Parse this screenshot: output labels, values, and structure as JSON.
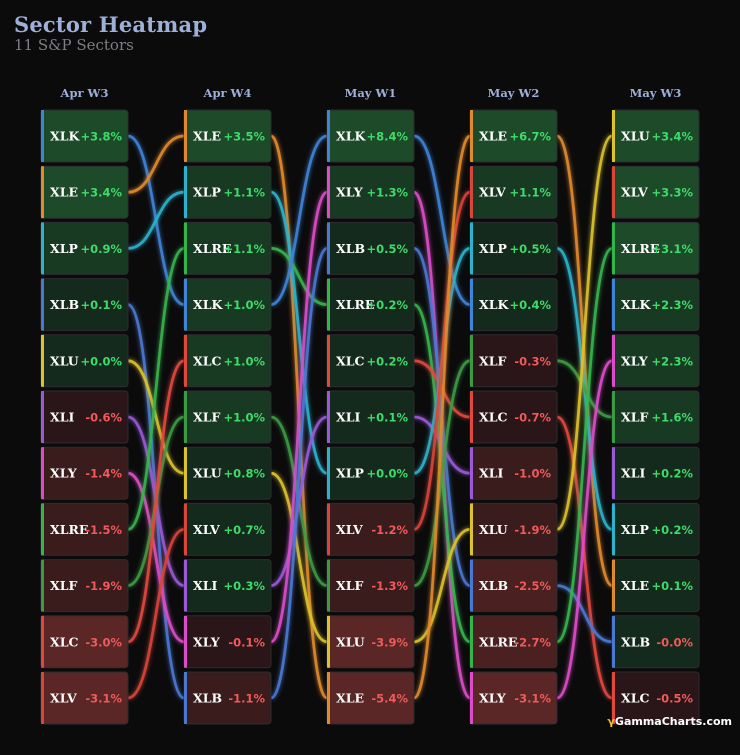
{
  "header": {
    "title": "Sector Heatmap",
    "subtitle": "11 S&P Sectors"
  },
  "brand": {
    "mark": "γ",
    "name": "GammaCharts.com"
  },
  "colors": {
    "background": "#0b0b0c",
    "positive_text": "#3ddc6a",
    "negative_text": "#f05a5a",
    "sector": {
      "XLK": "#3f84d6",
      "XLE": "#e08a2e",
      "XLP": "#2db2cc",
      "XLB": "#4a78d0",
      "XLU": "#dcc22c",
      "XLI": "#9a5ad8",
      "XLY": "#dc4cc8",
      "XLRE": "#36b44c",
      "XLF": "#3c9a44",
      "XLC": "#e0483e",
      "XLV": "#d8453a"
    }
  },
  "chart_data": {
    "type": "bump",
    "columns": [
      {
        "label": "Apr W3",
        "rows": [
          {
            "ticker": "XLK",
            "change": "+3.8%",
            "value": 3.8
          },
          {
            "ticker": "XLE",
            "change": "+3.4%",
            "value": 3.4
          },
          {
            "ticker": "XLP",
            "change": "+0.9%",
            "value": 0.9
          },
          {
            "ticker": "XLB",
            "change": "+0.1%",
            "value": 0.1
          },
          {
            "ticker": "XLU",
            "change": "+0.0%",
            "value": 0.0
          },
          {
            "ticker": "XLI",
            "change": "-0.6%",
            "value": -0.6
          },
          {
            "ticker": "XLY",
            "change": "-1.4%",
            "value": -1.4
          },
          {
            "ticker": "XLRE",
            "change": "-1.5%",
            "value": -1.5
          },
          {
            "ticker": "XLF",
            "change": "-1.9%",
            "value": -1.9
          },
          {
            "ticker": "XLC",
            "change": "-3.0%",
            "value": -3.0
          },
          {
            "ticker": "XLV",
            "change": "-3.1%",
            "value": -3.1
          }
        ]
      },
      {
        "label": "Apr W4",
        "rows": [
          {
            "ticker": "XLE",
            "change": "+3.5%",
            "value": 3.5
          },
          {
            "ticker": "XLP",
            "change": "+1.1%",
            "value": 1.1
          },
          {
            "ticker": "XLRE",
            "change": "+1.1%",
            "value": 1.1
          },
          {
            "ticker": "XLK",
            "change": "+1.0%",
            "value": 1.0
          },
          {
            "ticker": "XLC",
            "change": "+1.0%",
            "value": 1.0
          },
          {
            "ticker": "XLF",
            "change": "+1.0%",
            "value": 1.0
          },
          {
            "ticker": "XLU",
            "change": "+0.8%",
            "value": 0.8
          },
          {
            "ticker": "XLV",
            "change": "+0.7%",
            "value": 0.7
          },
          {
            "ticker": "XLI",
            "change": "+0.3%",
            "value": 0.3
          },
          {
            "ticker": "XLY",
            "change": "-0.1%",
            "value": -0.1
          },
          {
            "ticker": "XLB",
            "change": "-1.1%",
            "value": -1.1
          }
        ]
      },
      {
        "label": "May W1",
        "rows": [
          {
            "ticker": "XLK",
            "change": "+8.4%",
            "value": 8.4
          },
          {
            "ticker": "XLY",
            "change": "+1.3%",
            "value": 1.3
          },
          {
            "ticker": "XLB",
            "change": "+0.5%",
            "value": 0.5
          },
          {
            "ticker": "XLRE",
            "change": "+0.2%",
            "value": 0.2
          },
          {
            "ticker": "XLC",
            "change": "+0.2%",
            "value": 0.2
          },
          {
            "ticker": "XLI",
            "change": "+0.1%",
            "value": 0.1
          },
          {
            "ticker": "XLP",
            "change": "+0.0%",
            "value": 0.0
          },
          {
            "ticker": "XLV",
            "change": "-1.2%",
            "value": -1.2
          },
          {
            "ticker": "XLF",
            "change": "-1.3%",
            "value": -1.3
          },
          {
            "ticker": "XLU",
            "change": "-3.9%",
            "value": -3.9
          },
          {
            "ticker": "XLE",
            "change": "-5.4%",
            "value": -5.4
          }
        ]
      },
      {
        "label": "May W2",
        "rows": [
          {
            "ticker": "XLE",
            "change": "+6.7%",
            "value": 6.7
          },
          {
            "ticker": "XLV",
            "change": "+1.1%",
            "value": 1.1
          },
          {
            "ticker": "XLP",
            "change": "+0.5%",
            "value": 0.5
          },
          {
            "ticker": "XLK",
            "change": "+0.4%",
            "value": 0.4
          },
          {
            "ticker": "XLF",
            "change": "-0.3%",
            "value": -0.3
          },
          {
            "ticker": "XLC",
            "change": "-0.7%",
            "value": -0.7
          },
          {
            "ticker": "XLI",
            "change": "-1.0%",
            "value": -1.0
          },
          {
            "ticker": "XLU",
            "change": "-1.9%",
            "value": -1.9
          },
          {
            "ticker": "XLB",
            "change": "-2.5%",
            "value": -2.5
          },
          {
            "ticker": "XLRE",
            "change": "-2.7%",
            "value": -2.7
          },
          {
            "ticker": "XLY",
            "change": "-3.1%",
            "value": -3.1
          }
        ]
      },
      {
        "label": "May W3",
        "rows": [
          {
            "ticker": "XLU",
            "change": "+3.4%",
            "value": 3.4
          },
          {
            "ticker": "XLV",
            "change": "+3.3%",
            "value": 3.3
          },
          {
            "ticker": "XLRE",
            "change": "+3.1%",
            "value": 3.1
          },
          {
            "ticker": "XLK",
            "change": "+2.3%",
            "value": 2.3
          },
          {
            "ticker": "XLY",
            "change": "+2.3%",
            "value": 2.3
          },
          {
            "ticker": "XLF",
            "change": "+1.6%",
            "value": 1.6
          },
          {
            "ticker": "XLI",
            "change": "+0.2%",
            "value": 0.2
          },
          {
            "ticker": "XLP",
            "change": "+0.2%",
            "value": 0.2
          },
          {
            "ticker": "XLE",
            "change": "+0.1%",
            "value": 0.1
          },
          {
            "ticker": "XLB",
            "change": "-0.0%",
            "value": -0.0
          },
          {
            "ticker": "XLC",
            "change": "-0.5%",
            "value": -0.5
          }
        ]
      }
    ]
  }
}
